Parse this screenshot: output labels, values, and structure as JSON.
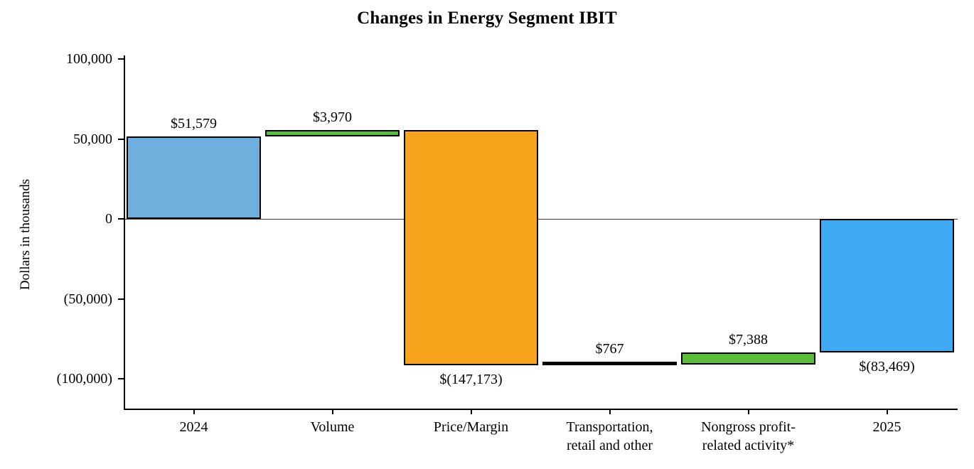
{
  "chart_data": {
    "type": "waterfall",
    "title": "Changes in Energy Segment IBIT",
    "ylabel": "Dollars in thousands",
    "ylim": [
      -125000,
      100000
    ],
    "grid": false,
    "legend": "none",
    "y_ticks": [
      {
        "value": 100000,
        "label": "100,000"
      },
      {
        "value": 50000,
        "label": "50,000"
      },
      {
        "value": 0,
        "label": "0"
      },
      {
        "value": -50000,
        "label": "(50,000)"
      },
      {
        "value": -100000,
        "label": "(100,000)"
      }
    ],
    "zero_line": true,
    "categories": [
      "2024",
      "Volume",
      "Price/Margin",
      "Transportation, retail and other",
      "Nongross profit-related activity*",
      "2025"
    ],
    "bars": [
      {
        "category_lines": [
          "2024"
        ],
        "value": 51579,
        "from": 0,
        "to": 51579,
        "data_label": "$51,579",
        "label_position": "above",
        "color": "#6fafde"
      },
      {
        "category_lines": [
          "Volume"
        ],
        "value": 3970,
        "from": 51579,
        "to": 55549,
        "data_label": "$3,970",
        "label_position": "above",
        "color": "#5abe3a"
      },
      {
        "category_lines": [
          "Price/Margin"
        ],
        "value": -147173,
        "from": 55549,
        "to": -91624,
        "data_label": "$(147,173)",
        "label_position": "below",
        "color": "#f8a41c"
      },
      {
        "category_lines": [
          "Transportation,",
          "retail and other"
        ],
        "value": 767,
        "from": -91624,
        "to": -90857,
        "data_label": "$767",
        "label_position": "above",
        "color": "#000000"
      },
      {
        "category_lines": [
          "Nongross profit-",
          "related activity*"
        ],
        "value": 7388,
        "from": -90857,
        "to": -83469,
        "data_label": "$7,388",
        "label_position": "above",
        "color": "#5abe3a"
      },
      {
        "category_lines": [
          "2025"
        ],
        "value": -83469,
        "from": 0,
        "to": -83469,
        "data_label": "$(83,469)",
        "label_position": "below",
        "color": "#3fa9f4"
      }
    ],
    "colors": {
      "start_total_bar": "#6fafde",
      "end_total_bar": "#3fa9f4",
      "increase_bar": "#5abe3a",
      "decrease_bar": "#f8a41c",
      "tiny_bar": "#000000",
      "axis": "#000000"
    }
  }
}
